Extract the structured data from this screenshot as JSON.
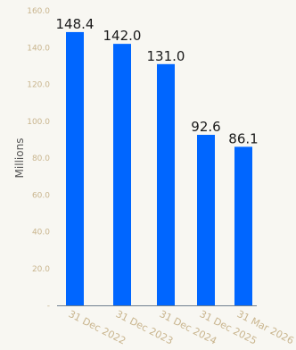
{
  "chart_data": {
    "type": "bar",
    "categories": [
      "31 Dec 2022",
      "31 Dec 2023",
      "31 Dec 2024",
      "31 Dec 2025",
      "31 Mar 2026"
    ],
    "values": [
      148.4,
      142.0,
      131.0,
      92.6,
      86.1
    ],
    "value_labels": [
      "148.4",
      "142.0",
      "131.0",
      "92.6",
      "86.1"
    ],
    "ylabel": "Millions",
    "xlabel": "",
    "ylim": [
      0,
      160
    ],
    "y_ticks": [
      {
        "value": 0,
        "label": "-"
      },
      {
        "value": 20,
        "label": "20.0"
      },
      {
        "value": 40,
        "label": "40.0"
      },
      {
        "value": 60,
        "label": "60.0"
      },
      {
        "value": 80,
        "label": "80.0"
      },
      {
        "value": 100,
        "label": "100.0"
      },
      {
        "value": 120,
        "label": "120.0"
      },
      {
        "value": 140,
        "label": "140.0"
      },
      {
        "value": 160,
        "label": "160.0"
      }
    ],
    "grid": false,
    "legend": "none",
    "colors": {
      "bar": "#0066ff",
      "axis": "#6f7f8f",
      "tick_text": "#c9b58e",
      "value_text": "#1a1a1a"
    }
  }
}
